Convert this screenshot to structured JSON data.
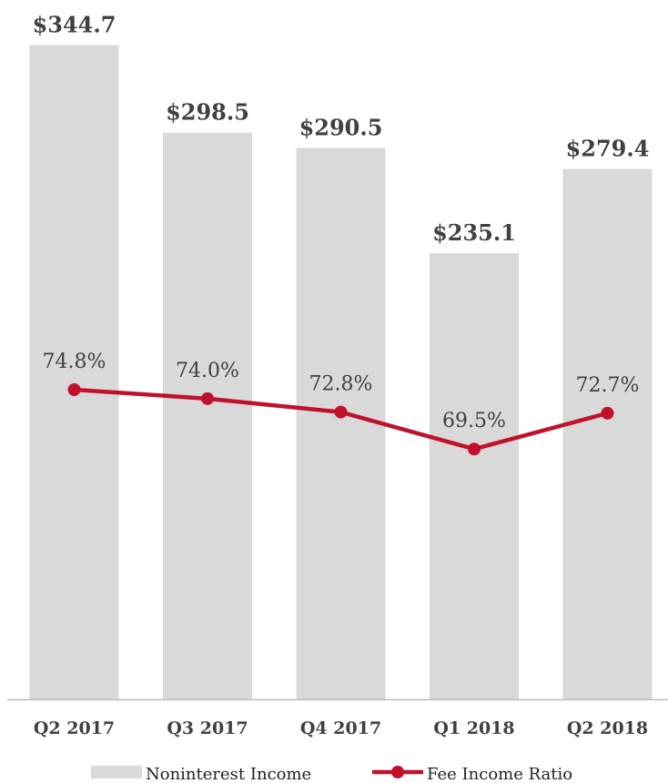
{
  "chart_data": {
    "type": "bar",
    "categories": [
      "Q2 2017",
      "Q3 2017",
      "Q4 2017",
      "Q1 2018",
      "Q2 2018"
    ],
    "series": [
      {
        "name": "Noninterest Income",
        "type": "bar",
        "values": [
          344.7,
          298.5,
          290.5,
          235.1,
          279.4
        ],
        "labels": [
          "$344.7",
          "$298.5",
          "$290.5",
          "$235.1",
          "$279.4"
        ],
        "color": "#d9d9d9"
      },
      {
        "name": "Fee Income Ratio",
        "type": "line",
        "values": [
          74.8,
          74.0,
          72.8,
          69.5,
          72.7
        ],
        "labels": [
          "74.8%",
          "74.0%",
          "72.8%",
          "69.5%",
          "72.7%"
        ],
        "color": "#c0102c"
      }
    ],
    "legend": {
      "position": "bottom"
    },
    "grid": false
  }
}
